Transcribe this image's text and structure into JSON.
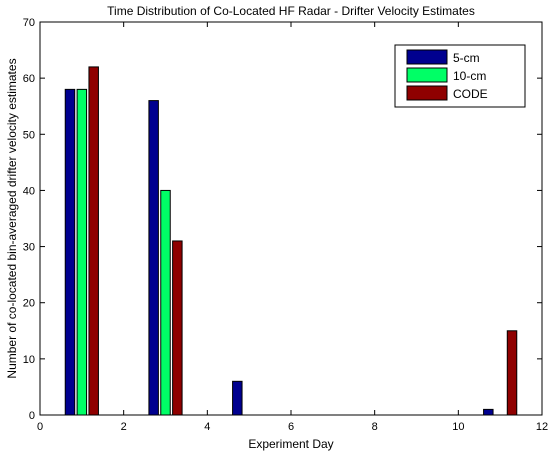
{
  "chart_data": {
    "type": "bar",
    "title": "Time Distribution of Co-Located HF Radar - Drifter Velocity Estimates",
    "xlabel": "Experiment Day",
    "ylabel": "Number of co-located bin-averaged drifter velocity estimates",
    "xlim": [
      0,
      12
    ],
    "ylim": [
      0,
      70
    ],
    "xticks": [
      "0",
      "2",
      "4",
      "6",
      "8",
      "10",
      "12"
    ],
    "yticks": [
      "0",
      "10",
      "20",
      "30",
      "40",
      "50",
      "60",
      "70"
    ],
    "x": [
      1,
      3,
      5,
      7,
      9,
      11
    ],
    "grid": false,
    "legend_position": "top-right",
    "series": [
      {
        "name": "5-cm",
        "color": "#00008f",
        "values": [
          58,
          56,
          6,
          0,
          0,
          1
        ]
      },
      {
        "name": "10-cm",
        "color": "#00ff66",
        "values": [
          58,
          40,
          0,
          0,
          0,
          0
        ]
      },
      {
        "name": "CODE",
        "color": "#8f0000",
        "values": [
          62,
          31,
          0,
          0,
          0,
          15
        ]
      }
    ]
  }
}
